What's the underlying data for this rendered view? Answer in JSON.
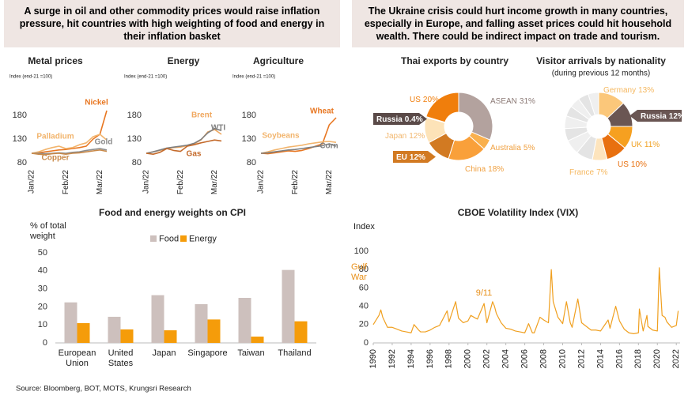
{
  "banners": [
    "A surge in  oil and other commodity prices would raise inflation pressure, hit countries with high weighting of food and energy in their inflation basket",
    "The Ukraine crisis could hurt income growth in many countries, especially in Europe, and falling asset prices could hit household wealth. There could be indirect impact on trade and tourism."
  ],
  "source": "Source: Bloomberg, BOT, MOTS, Krungsri Research",
  "chart_data": [
    {
      "type": "line",
      "title": "Metal prices",
      "subtitle": "Index (end-21 =100)",
      "categories": [
        "Jan/22",
        null,
        null,
        null,
        null,
        "Feb/22",
        null,
        null,
        null,
        null,
        "Mar/22",
        null
      ],
      "ylim": [
        75,
        215
      ],
      "yticks": [
        80,
        130,
        180
      ],
      "series": [
        {
          "name": "Nickel",
          "color": "#e87722",
          "values": [
            100,
            101,
            103,
            105,
            107,
            108,
            110,
            112,
            115,
            130,
            140,
            190
          ]
        },
        {
          "name": "Palladium",
          "color": "#f2b46c",
          "values": [
            100,
            103,
            108,
            112,
            115,
            110,
            112,
            118,
            122,
            135,
            140,
            128
          ]
        },
        {
          "name": "Gold",
          "color": "#8c8c8c",
          "values": [
            100,
            100,
            99,
            100,
            101,
            100,
            102,
            103,
            106,
            108,
            110,
            107
          ]
        },
        {
          "name": "Copper",
          "color": "#c98a4a",
          "values": [
            100,
            98,
            97,
            99,
            100,
            98,
            100,
            101,
            103,
            105,
            107,
            104
          ]
        }
      ]
    },
    {
      "type": "line",
      "title": "Energy",
      "subtitle": "Index (end-21 =100)",
      "categories": [
        "Jan/22",
        null,
        null,
        null,
        null,
        "Feb/22",
        null,
        null,
        null,
        null,
        "Mar/22",
        null
      ],
      "ylim": [
        75,
        215
      ],
      "yticks": [
        80,
        130,
        180
      ],
      "series": [
        {
          "name": "Brent",
          "color": "#f0a860",
          "values": [
            100,
            103,
            106,
            110,
            112,
            113,
            116,
            120,
            128,
            145,
            150,
            140
          ]
        },
        {
          "name": "WTI",
          "color": "#7f7f7f",
          "values": [
            100,
            103,
            107,
            111,
            113,
            115,
            117,
            121,
            129,
            143,
            152,
            148
          ]
        },
        {
          "name": "Gas",
          "color": "#c46a2b",
          "values": [
            100,
            98,
            102,
            110,
            106,
            104,
            115,
            118,
            122,
            125,
            128,
            126
          ]
        }
      ]
    },
    {
      "type": "line",
      "title": "Agriculture",
      "subtitle": "Index (end-21 =100)",
      "categories": [
        "Jan/22",
        null,
        null,
        null,
        null,
        "Feb/22",
        null,
        null,
        null,
        null,
        "Mar/22",
        null
      ],
      "ylim": [
        75,
        215
      ],
      "yticks": [
        80,
        130,
        180
      ],
      "series": [
        {
          "name": "Wheat",
          "color": "#e87722",
          "values": [
            100,
            99,
            101,
            103,
            105,
            104,
            106,
            110,
            115,
            120,
            160,
            175
          ]
        },
        {
          "name": "Soybeans",
          "color": "#f2b46c",
          "values": [
            100,
            103,
            107,
            110,
            113,
            115,
            117,
            120,
            122,
            124,
            125,
            123
          ]
        },
        {
          "name": "Corn",
          "color": "#7f7f7f",
          "values": [
            100,
            101,
            103,
            105,
            107,
            108,
            110,
            112,
            114,
            116,
            120,
            115
          ]
        }
      ]
    },
    {
      "type": "pie",
      "title": "Thai exports by country",
      "categories": [
        "ASEAN",
        "Australia",
        "China",
        "EU",
        "Japan",
        "Russia",
        "US"
      ],
      "values": [
        31,
        5,
        18,
        12,
        12,
        0.4,
        20
      ],
      "value_labels": [
        "31%",
        "5%",
        "18%",
        "12%",
        "12%",
        "0.4%",
        "20%"
      ],
      "colors": [
        "#b3a29e",
        "#f9b04d",
        "#f9a03a",
        "#d27a22",
        "#fde3b8",
        "#5a4a48",
        "#f07e0c"
      ]
    },
    {
      "type": "pie",
      "title": "Visitor arrivals by nationality",
      "subtitle": "(during previous 12 months)",
      "categories": [
        "Germany",
        "Russia",
        "UK",
        "US",
        "France",
        null,
        null,
        null,
        null,
        null,
        null,
        null,
        null
      ],
      "values": [
        13,
        12,
        11,
        10,
        7,
        8,
        7,
        6,
        6,
        5,
        5,
        5,
        5
      ],
      "value_labels": [
        "13%",
        "12%",
        "11%",
        "10%",
        "7%",
        null,
        null,
        null,
        null,
        null,
        null,
        null,
        null
      ],
      "colors": [
        "#fbc77a",
        "#6a5653",
        "#f6a020",
        "#e8700f",
        "#fde4bd",
        "#e4e4e4",
        "#efefef",
        "#e4e4e4",
        "#efefef",
        "#e4e4e4",
        "#efefef",
        "#e4e4e4",
        "#efefef"
      ]
    },
    {
      "type": "bar",
      "title": "Food and energy weights on CPI",
      "y_label": "% of total weight",
      "categories": [
        "European Union",
        "United States",
        "Japan",
        "Singapore",
        "Taiwan",
        "Thailand"
      ],
      "ylim": [
        0,
        50
      ],
      "yticks": [
        0,
        10,
        20,
        30,
        40,
        50
      ],
      "series": [
        {
          "name": "Food",
          "color": "#cdc0bd",
          "values": [
            22.5,
            14.5,
            26.5,
            21.5,
            25,
            40.5
          ]
        },
        {
          "name": "Energy",
          "color": "#f59c0a",
          "values": [
            11,
            7.5,
            7,
            13,
            3.5,
            12
          ]
        }
      ]
    },
    {
      "type": "line",
      "title": "CBOE Volatility Index (VIX)",
      "y_label": "Index",
      "color": "#f0a020",
      "annotations": [
        "Gulf War",
        "9/11"
      ],
      "x": [
        1990.0,
        1990.6,
        1990.8,
        1991.0,
        1991.5,
        1992.0,
        1992.5,
        1993.0,
        1993.5,
        1994.0,
        1994.3,
        1994.8,
        1995.0,
        1995.5,
        1996.0,
        1996.5,
        1997.0,
        1997.8,
        1998.0,
        1998.7,
        1999.0,
        1999.5,
        2000.0,
        2000.3,
        2000.8,
        2001.0,
        2001.7,
        2002.0,
        2002.6,
        2002.8,
        2003.0,
        2003.5,
        2004.0,
        2004.5,
        2005.0,
        2005.5,
        2006.0,
        2006.4,
        2006.8,
        2007.0,
        2007.6,
        2008.0,
        2008.5,
        2008.8,
        2009.0,
        2009.5,
        2010.0,
        2010.4,
        2010.8,
        2011.0,
        2011.6,
        2012.0,
        2012.5,
        2013.0,
        2013.5,
        2014.0,
        2014.8,
        2015.0,
        2015.6,
        2016.0,
        2016.5,
        2017.0,
        2017.5,
        2018.0,
        2018.1,
        2018.5,
        2018.9,
        2019.0,
        2019.5,
        2020.0,
        2020.2,
        2020.5,
        2020.8,
        2021.0,
        2021.5,
        2022.0,
        2022.2
      ],
      "values": [
        20,
        30,
        36,
        28,
        17,
        17,
        15,
        13,
        12,
        11,
        20,
        14,
        12,
        12,
        14,
        17,
        19,
        35,
        23,
        45,
        27,
        22,
        24,
        30,
        27,
        26,
        43,
        22,
        45,
        40,
        32,
        22,
        16,
        15,
        13,
        12,
        11,
        21,
        11,
        11,
        28,
        25,
        22,
        80,
        45,
        28,
        21,
        45,
        22,
        17,
        48,
        22,
        18,
        14,
        14,
        13,
        25,
        16,
        40,
        24,
        15,
        11,
        10,
        11,
        37,
        13,
        30,
        18,
        14,
        13,
        82,
        30,
        28,
        23,
        17,
        19,
        35
      ],
      "xlim": [
        1990,
        2022.4
      ],
      "xticks": [
        1990,
        1992,
        1994,
        1996,
        1998,
        2000,
        2002,
        2004,
        2006,
        2008,
        2010,
        2012,
        2014,
        2016,
        2018,
        2020,
        2022
      ],
      "ylim": [
        0,
        100
      ],
      "yticks": [
        0,
        20,
        40,
        60,
        80,
        100
      ]
    }
  ]
}
